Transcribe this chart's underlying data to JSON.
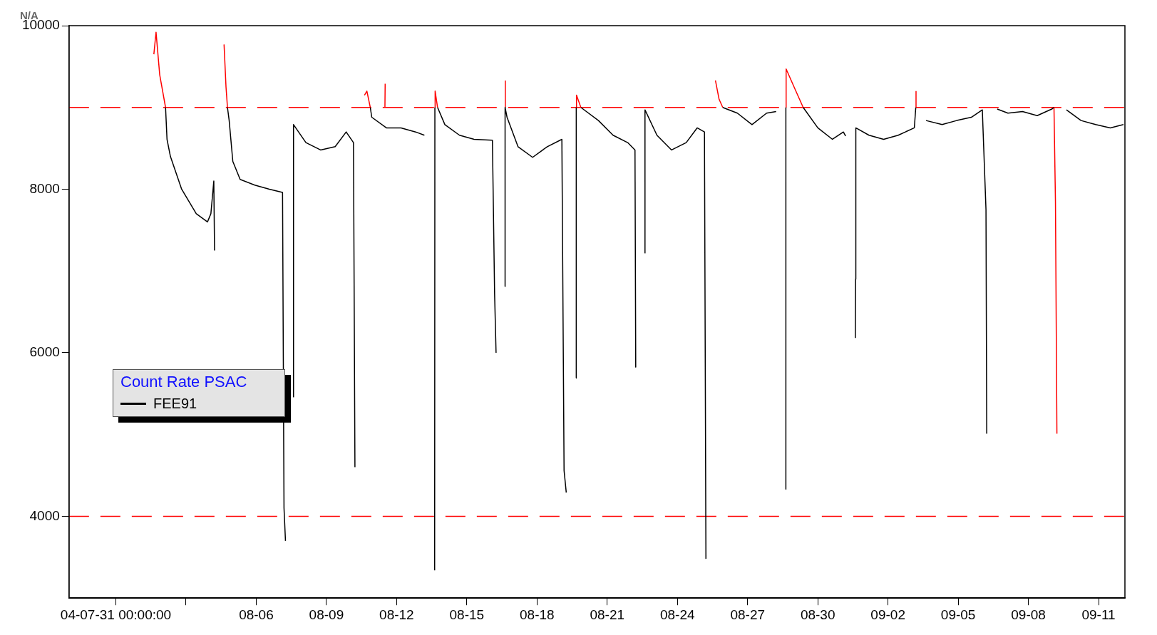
{
  "chart_data": {
    "type": "line",
    "ylabel": "N/A",
    "legend_title": "Count Rate PSAC",
    "legend": "left",
    "grid": false,
    "marker": "none",
    "line_style": "solid",
    "xlim": [
      "--07-29",
      "--09-12T03:00"
    ],
    "xticks": [
      {
        "value": "--07-31",
        "label": "04-07-31 00:00:00"
      },
      {
        "value": "--08-03",
        "label": null
      },
      {
        "value": "--08-06",
        "label": "08-06"
      },
      {
        "value": "--08-09",
        "label": "08-09"
      },
      {
        "value": "--08-12",
        "label": "08-12"
      },
      {
        "value": "--08-15",
        "label": "08-15"
      },
      {
        "value": "--08-18",
        "label": "08-18"
      },
      {
        "value": "--08-21",
        "label": "08-21"
      },
      {
        "value": "--08-24",
        "label": "08-24"
      },
      {
        "value": "--08-27",
        "label": "08-27"
      },
      {
        "value": "--08-30",
        "label": "08-30"
      },
      {
        "value": "--09-02",
        "label": "09-02"
      },
      {
        "value": "--09-05",
        "label": "09-05"
      },
      {
        "value": "--09-08",
        "label": "09-08"
      },
      {
        "value": "--09-11",
        "label": "09-11"
      }
    ],
    "ylim": [
      3000,
      10000
    ],
    "yticks": [
      4000,
      6000,
      8000,
      10000
    ],
    "ref_lines": [
      {
        "axis": "y",
        "value": 9000,
        "color": "#ff0000",
        "line_style": "dashed"
      },
      {
        "axis": "y",
        "value": 4000,
        "color": "#ff0000",
        "line_style": "dashed"
      }
    ],
    "series": [
      {
        "name": "FEE91",
        "color": "#000000",
        "x": [
          "--08-02T03:00",
          "--08-02T04:30",
          "--08-02T08:00",
          "--08-02T19:30",
          "--08-03T10:30",
          "--08-03T22:00",
          "--08-04T01:30",
          "--08-04T04:30",
          "--08-04T05:15",
          null,
          "--08-04T18:30",
          "--08-04T20:15",
          "--08-05T00:00",
          "--08-05T07:30",
          "--08-05T22:30",
          "--08-06T13:30",
          "--08-07T03:00",
          "--08-07T04:30",
          "--08-07T06:00",
          null,
          "--08-07T14:00",
          "--08-07T14:15",
          "--08-08T03:00",
          "--08-08T18:00",
          "--08-09T09:00",
          "--08-09T20:15",
          "--08-10T03:45",
          "--08-10T05:15",
          null,
          "--08-10T21:00",
          "--08-10T22:30",
          "--08-11T13:30",
          "--08-12T04:30",
          "--08-12T19:30",
          "--08-13T04:30",
          null,
          "--08-13T15:00",
          "--08-13T15:15",
          null,
          "--08-13T18:00",
          "--08-14T01:30",
          "--08-14T16:30",
          "--08-15T07:30",
          "--08-16T02:15",
          "--08-16T04:30",
          "--08-16T06:00",
          null,
          "--08-16T15:00",
          "--08-16T15:15",
          "--08-16T17:15",
          "--08-17T04:30",
          "--08-17T19:30",
          "--08-18T10:30",
          "--08-19T01:30",
          "--08-19T03:45",
          "--08-19T06:00",
          null,
          "--08-19T16:00",
          "--08-19T16:15",
          null,
          "--08-19T21:00",
          "--08-20T15:00",
          "--08-21T06:00",
          "--08-21T21:00",
          "--08-22T04:30",
          "--08-22T05:15",
          null,
          "--08-22T14:30",
          "--08-22T14:45",
          "--08-23T03:00",
          "--08-23T18:00",
          "--08-24T09:00",
          "--08-24T20:15",
          "--08-25T03:45",
          "--08-25T05:15",
          null,
          "--08-25T22:30",
          "--08-26T13:30",
          "--08-27T04:30",
          "--08-27T19:30",
          "--08-28T05:15",
          null,
          "--08-28T15:00",
          "--08-28T15:15",
          null,
          "--08-29T09:00",
          "--08-30T00:00",
          "--08-30T15:00",
          "--08-31T02:15",
          "--08-31T04:30",
          null,
          "--08-31T14:30",
          "--08-31T14:45",
          "--08-31T15:00",
          "--09-01T04:30",
          "--09-01T19:30",
          "--09-02T10:30",
          "--09-03T03:00",
          "--09-03T04:30",
          null,
          "--09-03T15:00",
          "--09-04T07:30",
          "--09-04T22:30",
          "--09-05T13:30",
          "--09-06T00:45",
          "--09-06T04:30",
          "--09-06T05:15",
          null,
          "--09-06T16:00",
          "--09-07T03:00",
          "--09-07T18:00",
          "--09-08T09:00",
          "--09-09T00:00",
          "--09-09T02:15",
          null,
          "--09-09T15:00",
          "--09-10T06:00",
          "--09-10T21:00",
          "--09-11T12:00",
          "--09-12T01:30"
        ],
        "values": [
          9000,
          8610,
          8400,
          8000,
          7700,
          7600,
          7700,
          8100,
          7250,
          null,
          9000,
          8840,
          8340,
          8120,
          8050,
          8000,
          7960,
          4100,
          3700,
          null,
          5460,
          8790,
          8570,
          8480,
          8520,
          8700,
          8570,
          4600,
          null,
          9000,
          8880,
          8750,
          8750,
          8700,
          8660,
          null,
          3340,
          9000,
          null,
          9000,
          8790,
          8660,
          8610,
          8600,
          6720,
          6000,
          null,
          6810,
          9000,
          8880,
          8520,
          8390,
          8520,
          8610,
          4560,
          4290,
          null,
          5690,
          9000,
          null,
          9000,
          8840,
          8660,
          8570,
          8480,
          5820,
          null,
          7220,
          8970,
          8660,
          8480,
          8570,
          8750,
          8700,
          3480,
          null,
          9000,
          8930,
          8790,
          8930,
          8950,
          null,
          4330,
          9000,
          null,
          9000,
          8750,
          8610,
          8700,
          8650,
          null,
          6180,
          6900,
          8750,
          8660,
          8610,
          8660,
          8750,
          9000,
          null,
          8840,
          8790,
          8840,
          8880,
          8970,
          7750,
          5010,
          null,
          8980,
          8930,
          8950,
          8900,
          8980,
          9000,
          null,
          8970,
          8840,
          8790,
          8750,
          8790
        ]
      },
      {
        "color": "#ff0000",
        "x": [
          "--08-01T15:00",
          "--08-01T17:15",
          "--08-01T21:00",
          "--08-02T03:00",
          null,
          "--08-04T15:00",
          "--08-04T17:00",
          "--08-04T18:30",
          null,
          "--08-10T15:00",
          "--08-10T17:30",
          "--08-10T21:00",
          null,
          "--08-11T12:00",
          "--08-11T12:15",
          null,
          "--08-13T15:15",
          "--08-13T15:30",
          "--08-13T18:00",
          null,
          "--08-16T15:15",
          "--08-16T15:30",
          null,
          "--08-19T16:15",
          "--08-19T16:30",
          "--08-19T21:00",
          null,
          "--08-25T15:00",
          "--08-25T18:45",
          "--08-25T22:30",
          null,
          "--08-28T15:15",
          "--08-28T15:30",
          "--08-29T01:30",
          "--08-29T09:00",
          null,
          "--09-03T04:30",
          "--09-03T04:45",
          null,
          "--09-09T02:15",
          "--09-09T03:45",
          "--09-09T05:15"
        ],
        "values": [
          9650,
          9920,
          9400,
          9000,
          null,
          9770,
          9250,
          9000,
          null,
          9150,
          9200,
          9000,
          null,
          9000,
          9290,
          null,
          9000,
          9200,
          9000,
          null,
          9000,
          9330,
          null,
          9000,
          9150,
          9000,
          null,
          9330,
          9100,
          9000,
          null,
          9000,
          9470,
          9200,
          9000,
          null,
          9000,
          9200,
          null,
          9000,
          7850,
          5010
        ]
      }
    ]
  }
}
